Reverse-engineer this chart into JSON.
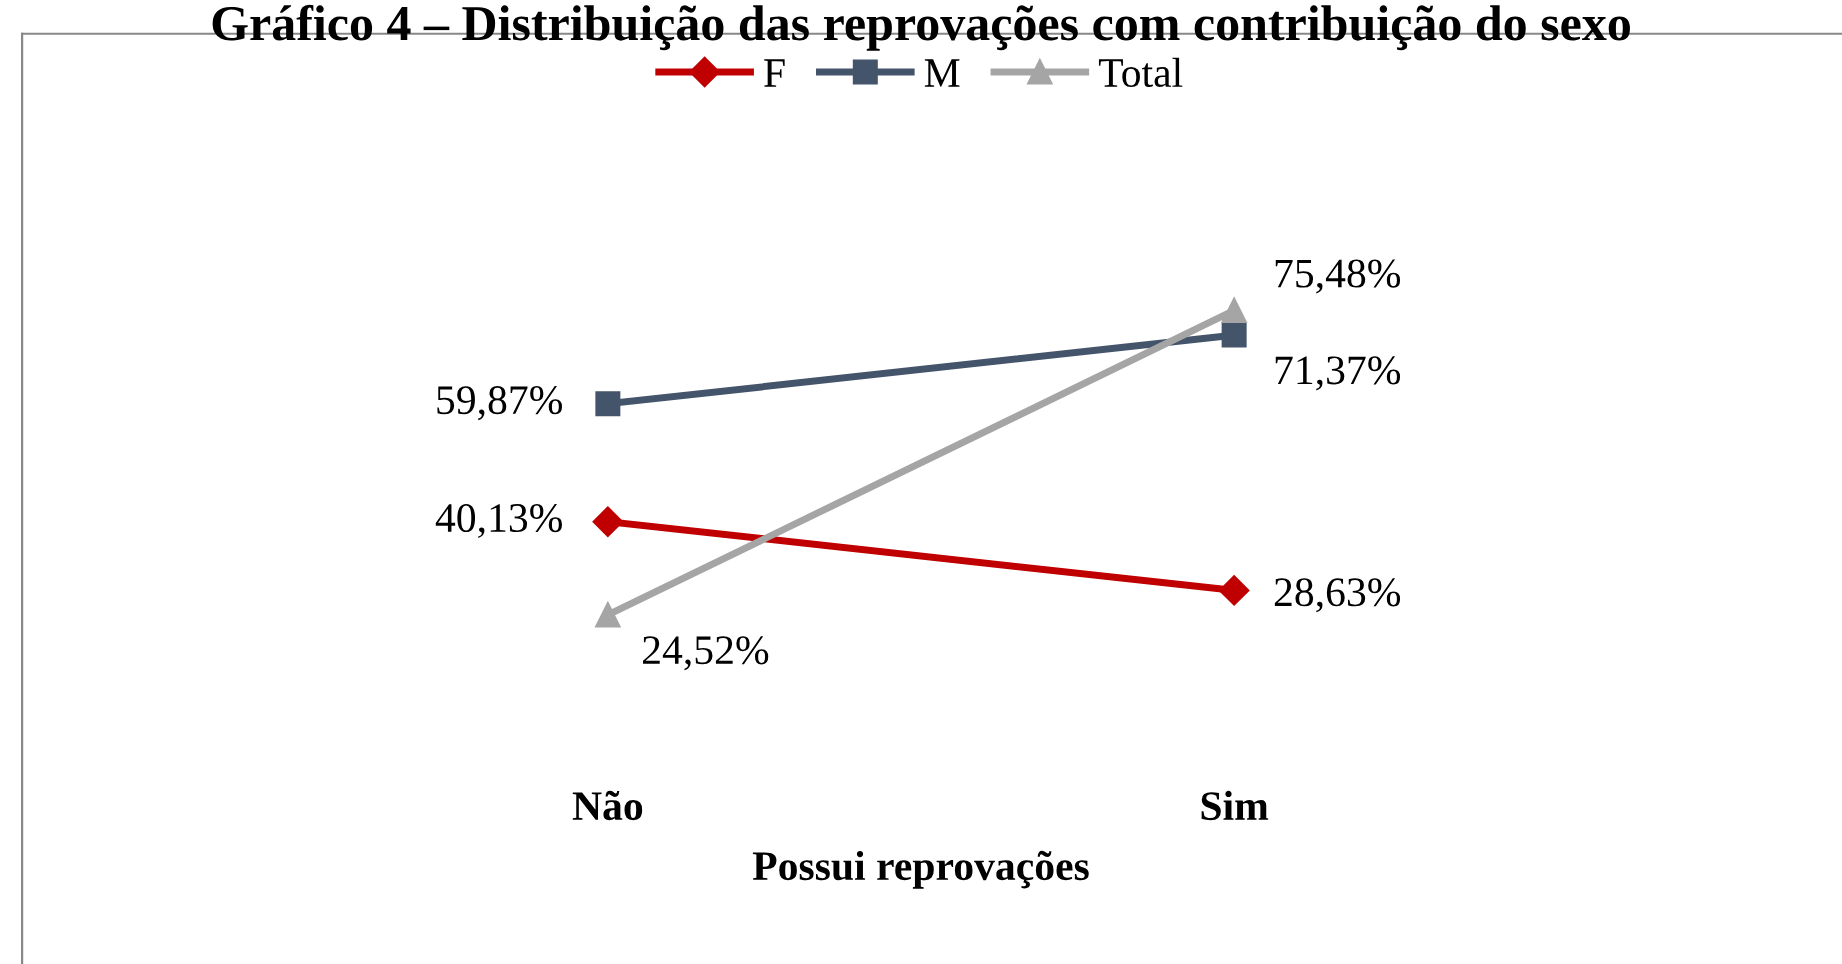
{
  "chart_data": {
    "type": "line",
    "title": "Gráfico 4 – Distribuição das reprovações com contribuição do sexo",
    "xlabel": "Possui reprovações",
    "categories": [
      "Não",
      "Sim"
    ],
    "tick_labels": "x",
    "grid": false,
    "legend": "top",
    "line_style": "solid",
    "series": [
      {
        "name": "F",
        "color": "#c00000",
        "marker": "diamond",
        "values": [
          40.13,
          28.63
        ],
        "value_labels": [
          "40,13%",
          "28,63%"
        ]
      },
      {
        "name": "M",
        "color": "#44546a",
        "marker": "square",
        "values": [
          59.87,
          71.37
        ],
        "value_labels": [
          "59,87%",
          "71,37%"
        ]
      },
      {
        "name": "Total",
        "color": "#a5a5a5",
        "marker": "triangle",
        "values": [
          24.52,
          75.48
        ],
        "value_labels": [
          "24,52%",
          "75,48%"
        ]
      }
    ]
  }
}
